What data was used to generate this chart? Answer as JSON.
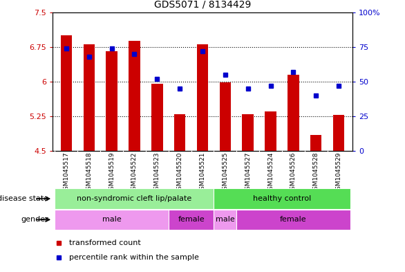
{
  "title": "GDS5071 / 8134429",
  "samples": [
    "GSM1045517",
    "GSM1045518",
    "GSM1045519",
    "GSM1045522",
    "GSM1045523",
    "GSM1045520",
    "GSM1045521",
    "GSM1045525",
    "GSM1045527",
    "GSM1045524",
    "GSM1045526",
    "GSM1045528",
    "GSM1045529"
  ],
  "bar_values": [
    7.0,
    6.8,
    6.65,
    6.88,
    5.95,
    5.3,
    6.8,
    5.98,
    5.3,
    5.35,
    6.15,
    4.85,
    5.28
  ],
  "dot_percentiles": [
    74,
    68,
    74,
    70,
    52,
    45,
    72,
    55,
    45,
    47,
    57,
    40,
    47
  ],
  "ylim_left": [
    4.5,
    7.5
  ],
  "ylim_right": [
    0,
    100
  ],
  "yticks_left": [
    4.5,
    5.25,
    6.0,
    6.75,
    7.5
  ],
  "ytick_labels_left": [
    "4.5",
    "5.25",
    "6",
    "6.75",
    "7.5"
  ],
  "yticks_right": [
    0,
    25,
    50,
    75,
    100
  ],
  "ytick_labels_right": [
    "0",
    "25",
    "50",
    "75",
    "100%"
  ],
  "bar_color": "#cc0000",
  "dot_color": "#0000cc",
  "bar_bottom": 4.5,
  "grid_values": [
    5.25,
    6.0,
    6.75
  ],
  "disease_state_groups": [
    {
      "label": "non-syndromic cleft lip/palate",
      "start": 0,
      "end": 7,
      "color": "#99ee99"
    },
    {
      "label": "healthy control",
      "start": 7,
      "end": 13,
      "color": "#55dd55"
    }
  ],
  "gender_groups": [
    {
      "label": "male",
      "start": 0,
      "end": 5,
      "color": "#ee99ee"
    },
    {
      "label": "female",
      "start": 5,
      "end": 7,
      "color": "#cc44cc"
    },
    {
      "label": "male",
      "start": 7,
      "end": 8,
      "color": "#ee99ee"
    },
    {
      "label": "female",
      "start": 8,
      "end": 13,
      "color": "#cc44cc"
    }
  ],
  "legend_items": [
    {
      "label": "transformed count",
      "color": "#cc0000",
      "marker": "s"
    },
    {
      "label": "percentile rank within the sample",
      "color": "#0000cc",
      "marker": "s"
    }
  ],
  "disease_state_label": "disease state",
  "gender_label": "gender",
  "background_color": "#ffffff",
  "xtick_bg_color": "#cccccc",
  "tick_label_color_left": "#cc0000",
  "tick_label_color_right": "#0000cc",
  "bar_width": 0.5
}
